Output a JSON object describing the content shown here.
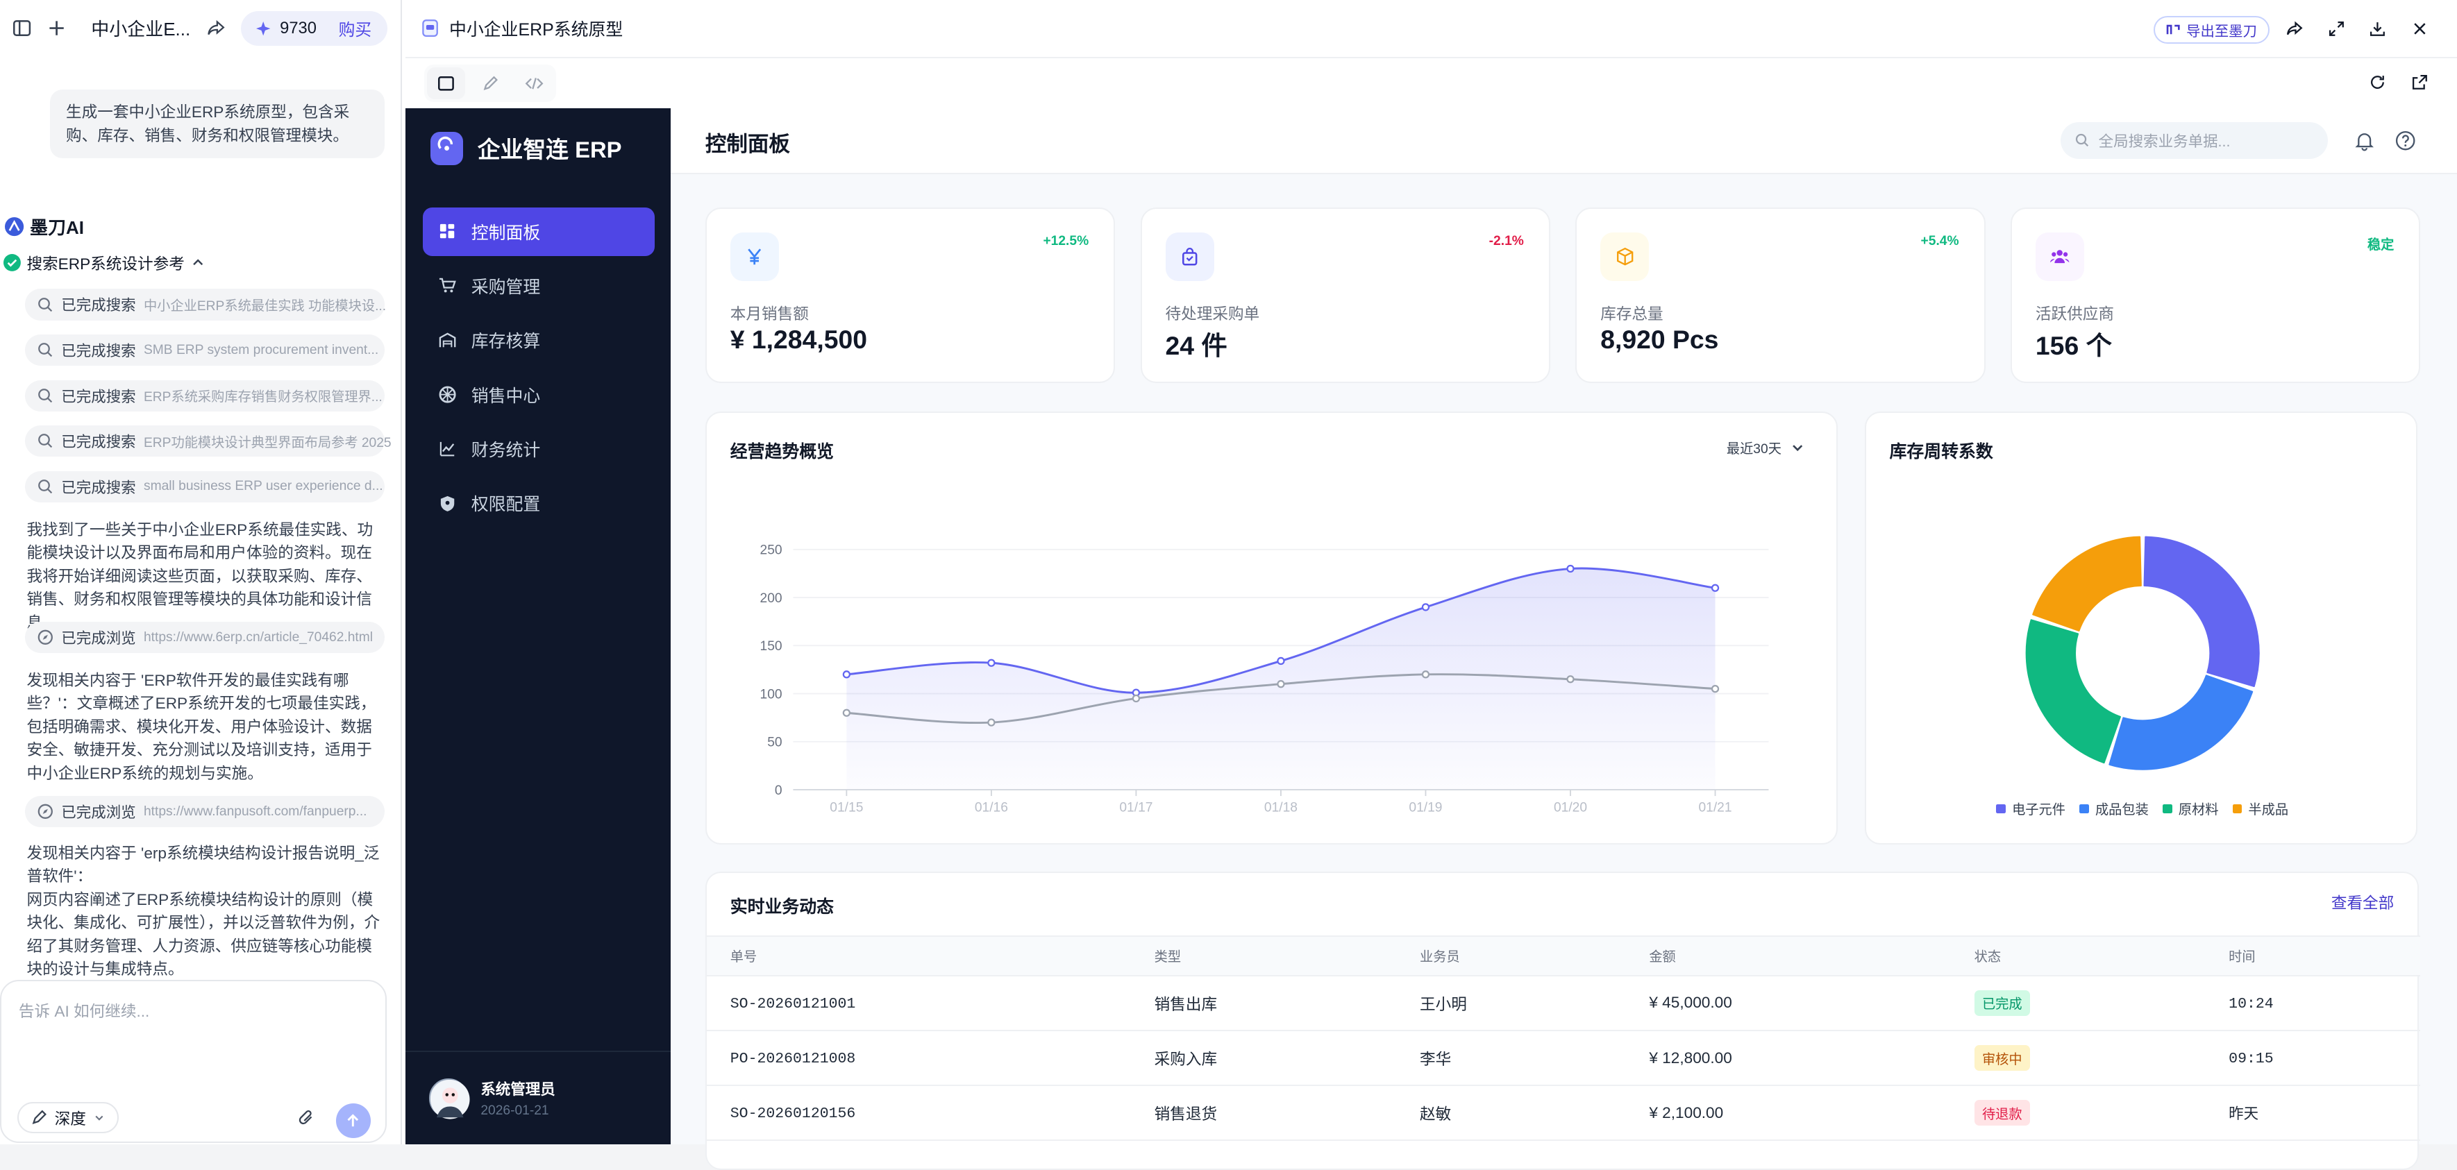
{
  "chat": {
    "project_title": "中小企业E...",
    "credits": "9730",
    "buy_label": "购买",
    "user_message": "生成一套中小企业ERP系统原型，包含采购、库存、销售、财务和权限管理模块。",
    "ai_name": "墨刀AI",
    "step_title": "搜索ERP系统设计参考",
    "searches": [
      {
        "status": "已完成搜索",
        "query": "中小企业ERP系统最佳实践 功能模块设..."
      },
      {
        "status": "已完成搜索",
        "query": "SMB ERP system procurement invent..."
      },
      {
        "status": "已完成搜索",
        "query": "ERP系统采购库存销售财务权限管理界..."
      },
      {
        "status": "已完成搜索",
        "query": "ERP功能模块设计典型界面布局参考 2025"
      },
      {
        "status": "已完成搜索",
        "query": "small business ERP user experience d..."
      }
    ],
    "para1": "我找到了一些关于中小企业ERP系统最佳实践、功能模块设计以及界面布局和用户体验的资料。现在我将开始详细阅读这些页面，以获取采购、库存、销售、财务和权限管理等模块的具体功能和设计信息。",
    "browse1": {
      "status": "已完成浏览",
      "url": "https://www.6erp.cn/article_70462.html"
    },
    "para2": "发现相关内容于 'ERP软件开发的最佳实践有哪些？'：文章概述了ERP系统开发的七项最佳实践，包括明确需求、模块化开发、用户体验设计、数据安全、敏捷开发、充分测试以及培训支持，适用于中小企业ERP系统的规划与实施。",
    "browse2": {
      "status": "已完成浏览",
      "url": "https://www.fanpusoft.com/fanpuerp..."
    },
    "para3": "发现相关内容于 'erp系统模块结构设计报告说明_泛普软件'：\n网页内容阐述了ERP系统模块结构设计的原则（模块化、集成化、可扩展性），并以泛普软件为例，介绍了其财务管理、人力资源、供应链等核心功能模块的设计与集成特点。",
    "input_placeholder": "告诉 AI 如何继续...",
    "depth_label": "深度"
  },
  "frame": {
    "title": "中小企业ERP系统原型",
    "export_label": "导出至墨刀"
  },
  "app": {
    "brand": "企业智连 ERP",
    "nav": [
      {
        "label": "控制面板",
        "icon": "dashboard-icon",
        "active": true
      },
      {
        "label": "采购管理",
        "icon": "cart-icon",
        "active": false
      },
      {
        "label": "库存核算",
        "icon": "warehouse-icon",
        "active": false
      },
      {
        "label": "销售中心",
        "icon": "sales-icon",
        "active": false
      },
      {
        "label": "财务统计",
        "icon": "finance-chart-icon",
        "active": false
      },
      {
        "label": "权限配置",
        "icon": "shield-icon",
        "active": false
      }
    ],
    "user": {
      "name": "系统管理员",
      "date": "2026-01-21"
    },
    "page_title": "控制面板",
    "search_placeholder": "全局搜索业务单据...",
    "kpis": [
      {
        "label": "本月销售额",
        "value": "¥ 1,284,500",
        "delta": "+12.5%",
        "delta_color": "#10b981",
        "icon": "yen-icon",
        "icon_color": "#3b82f6",
        "icon_bg": "#eff6ff"
      },
      {
        "label": "待处理采购单",
        "value": "24 件",
        "delta": "-2.1%",
        "delta_color": "#e11d48",
        "icon": "shopping-bag-icon",
        "icon_color": "#4f46e5",
        "icon_bg": "#eef2ff"
      },
      {
        "label": "库存总量",
        "value": "8,920 Pcs",
        "delta": "+5.4%",
        "delta_color": "#10b981",
        "icon": "box-icon",
        "icon_color": "#f59e0b",
        "icon_bg": "#fffbeb"
      },
      {
        "label": "活跃供应商",
        "value": "156 个",
        "delta": "稳定",
        "delta_color": "#10b981",
        "icon": "users-icon",
        "icon_color": "#9333ea",
        "icon_bg": "#faf5ff"
      }
    ],
    "trend_title": "经营趋势概览",
    "trend_range": "最近30天",
    "turnover_title": "库存周转系数",
    "activity_title": "实时业务动态",
    "view_all": "查看全部",
    "table": {
      "headers": [
        "单号",
        "类型",
        "业务员",
        "金额",
        "状态",
        "时间"
      ],
      "rows": [
        [
          "SO-20260121001",
          "销售出库",
          "王小明",
          "¥ 45,000.00",
          "已完成",
          "10:24"
        ],
        [
          "PO-20260121008",
          "采购入库",
          "李华",
          "¥ 12,800.00",
          "审核中",
          "09:15"
        ],
        [
          "SO-20260120156",
          "销售退货",
          "赵敏",
          "¥ 2,100.00",
          "待退款",
          "昨天"
        ]
      ],
      "status_colors": {
        "已完成": {
          "fg": "#059669",
          "bg": "#d1fae5"
        },
        "审核中": {
          "fg": "#b45309",
          "bg": "#fef3c7"
        },
        "待退款": {
          "fg": "#e11d48",
          "bg": "#ffe4e6"
        }
      }
    }
  },
  "chart_data": [
    {
      "type": "area",
      "title": "经营趋势概览",
      "categories": [
        "01/15",
        "01/16",
        "01/17",
        "01/18",
        "01/19",
        "01/20",
        "01/21"
      ],
      "ylim": [
        0,
        250
      ],
      "yticks": [
        0,
        50,
        100,
        150,
        200,
        250
      ],
      "grid": true,
      "series": [
        {
          "values": [
            120,
            132,
            101,
            134,
            190,
            230,
            210
          ],
          "color": "#6366f1",
          "filled": true
        },
        {
          "values": [
            80,
            70,
            95,
            110,
            120,
            115,
            105
          ],
          "color": "#9ca3af",
          "filled": false
        }
      ]
    },
    {
      "type": "pie",
      "title": "库存周转系数",
      "donut": true,
      "legend": "bottom",
      "slices": [
        {
          "name": "电子元件",
          "value": 30,
          "color": "#6366f1"
        },
        {
          "name": "成品包装",
          "value": 25,
          "color": "#3b82f6"
        },
        {
          "name": "原材料",
          "value": 25,
          "color": "#10b981"
        },
        {
          "name": "半成品",
          "value": 20,
          "color": "#f59e0b"
        }
      ]
    }
  ]
}
